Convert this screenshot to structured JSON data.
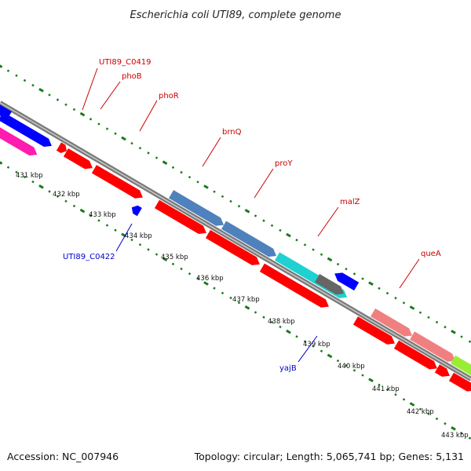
{
  "header": {
    "title": "Escherichia coli UTI89, complete genome"
  },
  "footer": {
    "accession": "Accession: NC_007946",
    "summary": "Topology: circular; Length: 5,065,741 bp; Genes: 5,131"
  },
  "map": {
    "kbp_labels": [
      "431 kbp",
      "432 kbp",
      "433 kbp",
      "434 kbp",
      "435 kbp",
      "436 kbp",
      "437 kbp",
      "438 kbp",
      "439 kbp",
      "440 kbp",
      "441 kbp",
      "442 kbp",
      "443 kbp"
    ],
    "gene_labels": [
      {
        "text": "UTI89_C0419",
        "color": "#cc0000"
      },
      {
        "text": "phoB",
        "color": "#cc0000"
      },
      {
        "text": "phoR",
        "color": "#cc0000"
      },
      {
        "text": "brnQ",
        "color": "#cc0000"
      },
      {
        "text": "proY",
        "color": "#cc0000"
      },
      {
        "text": "malZ",
        "color": "#cc0000"
      },
      {
        "text": "queA",
        "color": "#cc0000"
      },
      {
        "text": "UTI89_C0422",
        "color": "#0000cc"
      },
      {
        "text": "yajB",
        "color": "#0000cc"
      }
    ],
    "colors": {
      "forward_cds": "#ff0000",
      "reverse_cds": "#0000ff",
      "pink_feature": "#ff1cae",
      "steel_feature": "#4f81bd",
      "cyan_feature": "#1fd1d1",
      "salmon_feature": "#f08080",
      "lime_feature": "#99ee33",
      "gray_feature": "#666666",
      "tick_color": "#1a7a1a",
      "backbone": "#7a7a7a"
    }
  }
}
